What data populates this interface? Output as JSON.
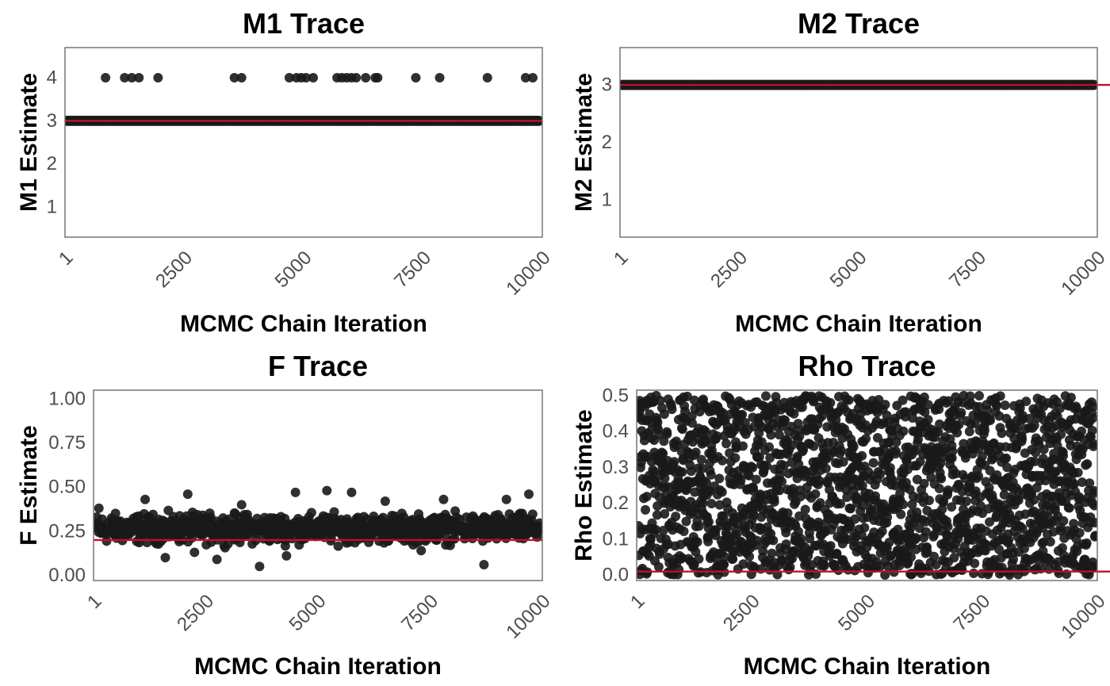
{
  "colors": {
    "points": "#1a1a1a",
    "reference_line": "#c0102a",
    "panel_border": "#6b6b6b",
    "tick_text": "#4d4d4d"
  },
  "chart_data": [
    {
      "type": "scatter",
      "title": "M1 Trace",
      "xlabel": "MCMC Chain Iteration",
      "ylabel": "M1 Estimate",
      "xlim": [
        1,
        10000
      ],
      "ylim": [
        0.3,
        4.7
      ],
      "xticks": [
        "1",
        "2500",
        "5000",
        "7500",
        "10000"
      ],
      "yticks": [
        "1",
        "2",
        "3",
        "4"
      ],
      "reference_line": 3,
      "grid": false,
      "series": [
        {
          "x": [
            1,
            10000
          ],
          "y": [
            3,
            3
          ],
          "dense_band": true
        },
        {
          "x": [
            850,
            1250,
            1400,
            1550,
            1950,
            3550,
            3700,
            4700,
            4850,
            4950,
            5050,
            5200,
            5700,
            5800,
            5900,
            6000,
            6100,
            6300,
            6500,
            6550,
            7350,
            7850,
            8850,
            9650,
            9800
          ],
          "y": [
            4,
            4,
            4,
            4,
            4,
            4,
            4,
            4,
            4,
            4,
            4,
            4,
            4,
            4,
            4,
            4,
            4,
            4,
            4,
            4,
            4,
            4,
            4,
            4,
            4
          ]
        }
      ]
    },
    {
      "type": "scatter",
      "title": "M2 Trace",
      "xlabel": "MCMC Chain Iteration",
      "ylabel": "M2 Estimate",
      "xlim": [
        1,
        10000
      ],
      "ylim": [
        0.35,
        3.65
      ],
      "xticks": [
        "1",
        "2500",
        "5000",
        "7500",
        "10000"
      ],
      "yticks": [
        "1",
        "2",
        "3"
      ],
      "reference_line": 3,
      "grid": false,
      "series": [
        {
          "x": [
            1,
            10000
          ],
          "y": [
            3,
            3
          ],
          "dense_band": true
        }
      ]
    },
    {
      "type": "scatter",
      "title": "F Trace",
      "xlabel": "MCMC Chain Iteration",
      "ylabel": "F Estimate",
      "xlim": [
        1,
        10000
      ],
      "ylim": [
        -0.03,
        1.05
      ],
      "xticks": [
        "1",
        "2500",
        "5000",
        "7500",
        "10000"
      ],
      "yticks": [
        "0.00",
        "0.25",
        "0.50",
        "0.75",
        "1.00"
      ],
      "reference_line": 0.2,
      "grid": false,
      "series": [
        {
          "x": [
            1,
            10000
          ],
          "y": [
            0.15,
            0.38
          ],
          "range_band": true
        },
        {
          "x": [
            120,
            1150,
            1600,
            2100,
            2250,
            2750,
            3300,
            3700,
            4300,
            4500,
            5200,
            5750,
            6500,
            7300,
            7800,
            8700,
            9200,
            9700
          ],
          "y": [
            0.38,
            0.43,
            0.1,
            0.46,
            0.13,
            0.09,
            0.4,
            0.05,
            0.11,
            0.47,
            0.48,
            0.47,
            0.42,
            0.14,
            0.43,
            0.06,
            0.43,
            0.46
          ]
        }
      ]
    },
    {
      "type": "scatter",
      "title": "Rho Trace",
      "xlabel": "MCMC Chain Iteration",
      "ylabel": "Rho Estimate",
      "xlim": [
        1,
        10000
      ],
      "ylim": [
        -0.015,
        0.515
      ],
      "xticks": [
        "1",
        "2500",
        "5000",
        "7500",
        "10000"
      ],
      "yticks": [
        "0.0",
        "0.1",
        "0.2",
        "0.3",
        "0.4",
        "0.5"
      ],
      "reference_line": 0.01,
      "grid": false,
      "series": [
        {
          "x": [
            1,
            10000
          ],
          "y": [
            0,
            0.5
          ],
          "uniform_band": true
        }
      ]
    }
  ]
}
